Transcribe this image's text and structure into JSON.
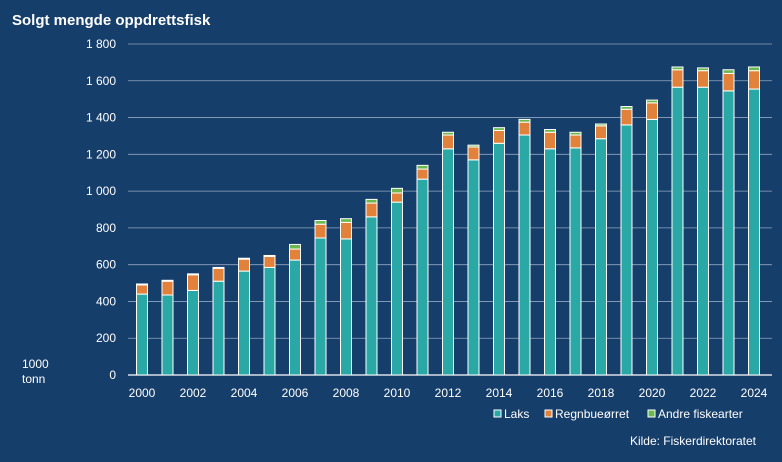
{
  "colors": {
    "background": "#163e6b",
    "laks": "#2aa8a5",
    "regnbueorret": "#e2823a",
    "andre": "#6ab84f",
    "gridline": "#8fa6bf",
    "text": "#ffffff"
  },
  "chart_data": {
    "type": "bar",
    "stacked": true,
    "title": "Solgt mengde oppdrettsfisk",
    "ylabel": "1000 tonn",
    "xlabel": "",
    "ylim": [
      0,
      1800
    ],
    "y_ticks": [
      "0",
      "200",
      "400",
      "600",
      "800",
      "1 000",
      "1 200",
      "1 400",
      "1 600",
      "1 800"
    ],
    "grid": true,
    "legend_position": "bottom-right",
    "x_tick_labels": [
      "2000",
      "2002",
      "2004",
      "2006",
      "2008",
      "2010",
      "2012",
      "2014",
      "2016",
      "2018",
      "2020",
      "2022",
      "2024"
    ],
    "categories": [
      "2000",
      "2001",
      "2002",
      "2003",
      "2004",
      "2005",
      "2006",
      "2007",
      "2008",
      "2009",
      "2010",
      "2011",
      "2012",
      "2013",
      "2014",
      "2015",
      "2016",
      "2017",
      "2018",
      "2019",
      "2020",
      "2021",
      "2022",
      "2023",
      "2024"
    ],
    "series": [
      {
        "name": "Laks",
        "color": "#2aa8a5",
        "values": [
          440,
          435,
          460,
          510,
          565,
          585,
          625,
          745,
          740,
          860,
          940,
          1065,
          1230,
          1170,
          1260,
          1305,
          1230,
          1235,
          1285,
          1360,
          1390,
          1565,
          1565,
          1545,
          1555
        ]
      },
      {
        "name": "Regnbueørret",
        "color": "#e2823a",
        "values": [
          50,
          75,
          85,
          70,
          65,
          60,
          60,
          75,
          90,
          75,
          50,
          55,
          75,
          70,
          70,
          70,
          90,
          70,
          70,
          85,
          90,
          95,
          90,
          95,
          100
        ]
      },
      {
        "name": "Andre fiskearter",
        "color": "#6ab84f",
        "values": [
          5,
          5,
          5,
          5,
          5,
          5,
          25,
          20,
          20,
          20,
          25,
          20,
          15,
          10,
          15,
          15,
          15,
          15,
          10,
          15,
          15,
          15,
          15,
          20,
          20
        ]
      }
    ],
    "source": "Kilde: Fiskerdirektoratet"
  }
}
